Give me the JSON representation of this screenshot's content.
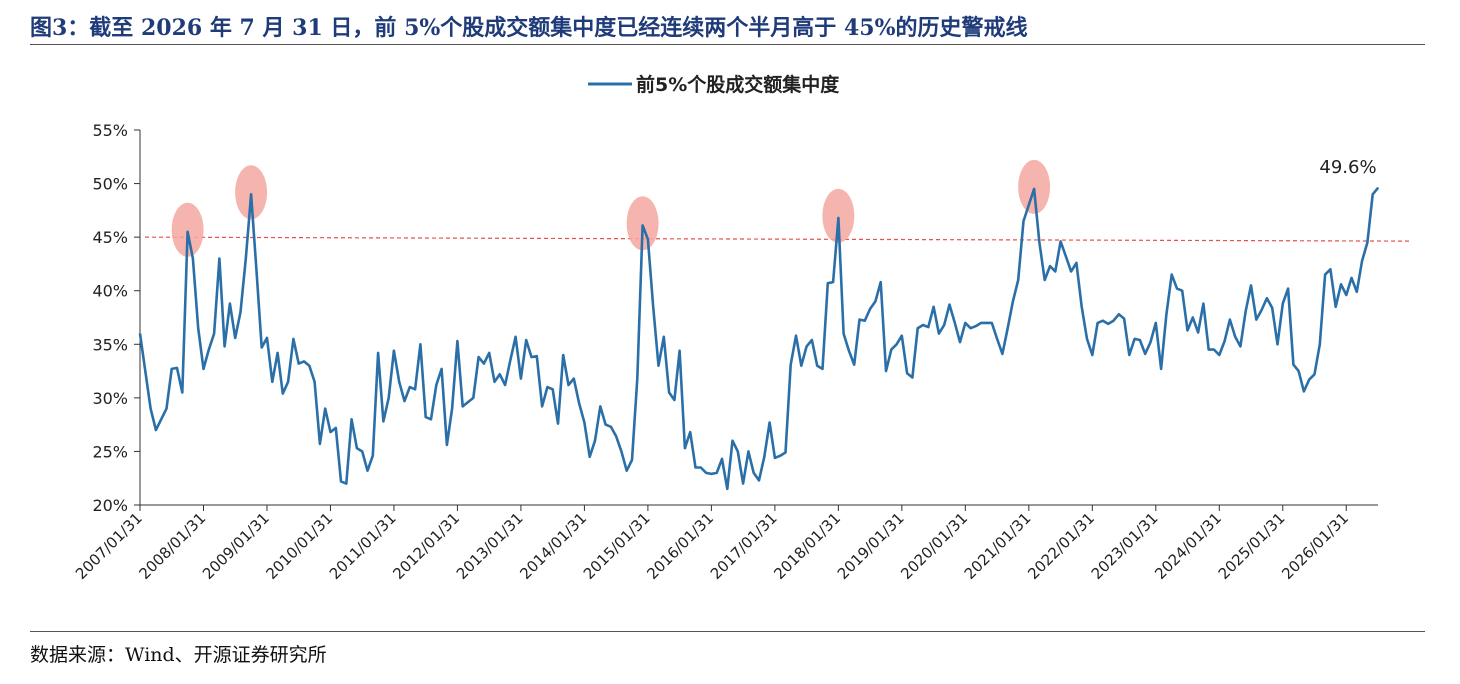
{
  "figure": {
    "title": "图3：截至 2026 年 7 月 31 日，前 5%个股成交额集中度已经连续两个半月高于 45%的历史警戒线",
    "source": "数据来源：Wind、开源证券研究所"
  },
  "colors": {
    "line": "#2a6fa8",
    "title": "#1f3b7a",
    "threshold": "#e8504a",
    "highlight": "#f4a7a0"
  },
  "chart_data": {
    "type": "line",
    "x_label_format": "YYYY/MM/DD",
    "xticks": [
      "2007/01/31",
      "2008/01/31",
      "2009/01/31",
      "2010/01/31",
      "2011/01/31",
      "2012/01/31",
      "2013/01/31",
      "2014/01/31",
      "2015/01/31",
      "2016/01/31",
      "2017/01/31",
      "2018/01/31",
      "2019/01/31",
      "2020/01/31",
      "2021/01/31",
      "2022/01/31",
      "2023/01/31",
      "2024/01/31",
      "2025/01/31",
      "2026/01/31"
    ],
    "yticks": [
      "20%",
      "25%",
      "30%",
      "35%",
      "40%",
      "45%",
      "50%",
      "55%"
    ],
    "ylim": [
      20,
      55
    ],
    "xlim": [
      "2007/01/31",
      "2026/07/31"
    ],
    "legend": {
      "position": "top",
      "label": "前5%个股成交额集中度"
    },
    "threshold": {
      "value": 45,
      "style": "dashed"
    },
    "annotation": {
      "text": "49.6%",
      "x": "2026/07/31",
      "y": 49.6
    },
    "highlights": [
      {
        "x": "2007/10/31",
        "y": 45.5
      },
      {
        "x": "2008/10/31",
        "y": 49.0
      },
      {
        "x": "2014/12/31",
        "y": 46.1
      },
      {
        "x": "2018/01/31",
        "y": 46.8
      },
      {
        "x": "2021/02/28",
        "y": 49.5
      }
    ],
    "series": [
      {
        "name": "前5%个股成交额集中度",
        "points": [
          [
            "2007/01/31",
            36.0
          ],
          [
            "2007/02/28",
            32.5
          ],
          [
            "2007/03/31",
            29.0
          ],
          [
            "2007/04/30",
            27.0
          ],
          [
            "2007/05/31",
            28.0
          ],
          [
            "2007/06/30",
            29.0
          ],
          [
            "2007/07/31",
            32.7
          ],
          [
            "2007/08/31",
            32.8
          ],
          [
            "2007/09/30",
            30.5
          ],
          [
            "2007/10/31",
            45.5
          ],
          [
            "2007/11/30",
            43.0
          ],
          [
            "2007/12/31",
            36.5
          ],
          [
            "2008/01/31",
            32.7
          ],
          [
            "2008/02/29",
            34.5
          ],
          [
            "2008/03/31",
            36.0
          ],
          [
            "2008/04/30",
            43.0
          ],
          [
            "2008/05/31",
            34.8
          ],
          [
            "2008/06/30",
            38.8
          ],
          [
            "2008/07/31",
            35.6
          ],
          [
            "2008/08/31",
            38.0
          ],
          [
            "2008/09/30",
            43.0
          ],
          [
            "2008/10/31",
            49.0
          ],
          [
            "2008/11/30",
            42.0
          ],
          [
            "2008/12/31",
            34.7
          ],
          [
            "2009/01/31",
            35.6
          ],
          [
            "2009/02/28",
            31.5
          ],
          [
            "2009/03/31",
            34.2
          ],
          [
            "2009/04/30",
            30.4
          ],
          [
            "2009/05/31",
            31.5
          ],
          [
            "2009/06/30",
            35.5
          ],
          [
            "2009/07/31",
            33.2
          ],
          [
            "2009/08/31",
            33.4
          ],
          [
            "2009/09/30",
            33.0
          ],
          [
            "2009/10/31",
            31.5
          ],
          [
            "2009/11/30",
            25.7
          ],
          [
            "2009/12/31",
            29.0
          ],
          [
            "2010/01/31",
            26.8
          ],
          [
            "2010/02/28",
            27.2
          ],
          [
            "2010/03/31",
            22.2
          ],
          [
            "2010/04/30",
            22.0
          ],
          [
            "2010/05/31",
            28.0
          ],
          [
            "2010/06/30",
            25.3
          ],
          [
            "2010/07/31",
            25.0
          ],
          [
            "2010/08/31",
            23.2
          ],
          [
            "2010/09/30",
            24.6
          ],
          [
            "2010/10/31",
            34.2
          ],
          [
            "2010/11/30",
            27.8
          ],
          [
            "2010/12/31",
            30.0
          ],
          [
            "2011/01/31",
            34.4
          ],
          [
            "2011/02/28",
            31.5
          ],
          [
            "2011/03/31",
            29.7
          ],
          [
            "2011/04/30",
            31.0
          ],
          [
            "2011/05/31",
            30.8
          ],
          [
            "2011/06/30",
            35.0
          ],
          [
            "2011/07/31",
            28.2
          ],
          [
            "2011/08/31",
            28.0
          ],
          [
            "2011/09/30",
            31.2
          ],
          [
            "2011/10/31",
            32.7
          ],
          [
            "2011/11/30",
            25.6
          ],
          [
            "2011/12/31",
            29.0
          ],
          [
            "2012/01/31",
            35.3
          ],
          [
            "2012/02/29",
            29.2
          ],
          [
            "2012/03/31",
            29.6
          ],
          [
            "2012/04/30",
            30.0
          ],
          [
            "2012/05/31",
            33.8
          ],
          [
            "2012/06/30",
            33.2
          ],
          [
            "2012/07/31",
            34.2
          ],
          [
            "2012/08/31",
            31.5
          ],
          [
            "2012/09/30",
            32.2
          ],
          [
            "2012/10/31",
            31.2
          ],
          [
            "2012/11/30",
            33.5
          ],
          [
            "2012/12/31",
            35.7
          ],
          [
            "2013/01/31",
            31.8
          ],
          [
            "2013/02/28",
            35.4
          ],
          [
            "2013/03/31",
            33.8
          ],
          [
            "2013/04/30",
            33.9
          ],
          [
            "2013/05/31",
            29.2
          ],
          [
            "2013/06/30",
            31.0
          ],
          [
            "2013/07/31",
            30.8
          ],
          [
            "2013/08/31",
            27.6
          ],
          [
            "2013/09/30",
            34.0
          ],
          [
            "2013/10/31",
            31.2
          ],
          [
            "2013/11/30",
            31.8
          ],
          [
            "2013/12/31",
            29.5
          ],
          [
            "2014/01/31",
            27.7
          ],
          [
            "2014/02/28",
            24.5
          ],
          [
            "2014/03/31",
            26.0
          ],
          [
            "2014/04/30",
            29.2
          ],
          [
            "2014/05/31",
            27.5
          ],
          [
            "2014/06/30",
            27.3
          ],
          [
            "2014/07/31",
            26.4
          ],
          [
            "2014/08/31",
            25.0
          ],
          [
            "2014/09/30",
            23.2
          ],
          [
            "2014/10/31",
            24.2
          ],
          [
            "2014/11/30",
            31.8
          ],
          [
            "2014/12/31",
            46.1
          ],
          [
            "2015/01/31",
            44.8
          ],
          [
            "2015/02/28",
            38.5
          ],
          [
            "2015/03/31",
            33.0
          ],
          [
            "2015/04/30",
            35.7
          ],
          [
            "2015/05/31",
            30.5
          ],
          [
            "2015/06/30",
            29.8
          ],
          [
            "2015/07/31",
            34.4
          ],
          [
            "2015/08/31",
            25.3
          ],
          [
            "2015/09/30",
            26.8
          ],
          [
            "2015/10/31",
            23.5
          ],
          [
            "2015/11/30",
            23.5
          ],
          [
            "2015/12/31",
            23.0
          ],
          [
            "2016/01/31",
            22.9
          ],
          [
            "2016/02/29",
            23.0
          ],
          [
            "2016/03/31",
            24.3
          ],
          [
            "2016/04/30",
            21.5
          ],
          [
            "2016/05/31",
            26.0
          ],
          [
            "2016/06/30",
            25.0
          ],
          [
            "2016/07/31",
            22.0
          ],
          [
            "2016/08/31",
            25.0
          ],
          [
            "2016/09/30",
            23.0
          ],
          [
            "2016/10/31",
            22.3
          ],
          [
            "2016/11/30",
            24.5
          ],
          [
            "2016/12/31",
            27.7
          ],
          [
            "2017/01/31",
            24.4
          ],
          [
            "2017/02/28",
            24.6
          ],
          [
            "2017/03/31",
            24.9
          ],
          [
            "2017/04/30",
            33.1
          ],
          [
            "2017/05/31",
            35.8
          ],
          [
            "2017/06/30",
            33.0
          ],
          [
            "2017/07/31",
            34.8
          ],
          [
            "2017/08/31",
            35.4
          ],
          [
            "2017/09/30",
            33.0
          ],
          [
            "2017/10/31",
            32.7
          ],
          [
            "2017/11/30",
            40.7
          ],
          [
            "2017/12/31",
            40.8
          ],
          [
            "2018/01/31",
            46.8
          ],
          [
            "2018/02/28",
            36.0
          ],
          [
            "2018/03/31",
            34.4
          ],
          [
            "2018/04/30",
            33.1
          ],
          [
            "2018/05/31",
            37.3
          ],
          [
            "2018/06/30",
            37.2
          ],
          [
            "2018/07/31",
            38.3
          ],
          [
            "2018/08/31",
            39.0
          ],
          [
            "2018/09/30",
            40.8
          ],
          [
            "2018/10/31",
            32.5
          ],
          [
            "2018/11/30",
            34.5
          ],
          [
            "2018/12/31",
            35.0
          ],
          [
            "2019/01/31",
            35.8
          ],
          [
            "2019/02/28",
            32.3
          ],
          [
            "2019/03/31",
            31.9
          ],
          [
            "2019/04/30",
            36.5
          ],
          [
            "2019/05/31",
            36.8
          ],
          [
            "2019/06/30",
            36.6
          ],
          [
            "2019/07/31",
            38.5
          ],
          [
            "2019/08/31",
            36.0
          ],
          [
            "2019/09/30",
            36.8
          ],
          [
            "2019/10/31",
            38.7
          ],
          [
            "2019/11/30",
            37.0
          ],
          [
            "2019/12/31",
            35.2
          ],
          [
            "2020/01/31",
            37.0
          ],
          [
            "2020/02/29",
            36.5
          ],
          [
            "2020/03/31",
            36.7
          ],
          [
            "2020/04/30",
            37.0
          ],
          [
            "2020/05/31",
            37.0
          ],
          [
            "2020/06/30",
            37.0
          ],
          [
            "2020/07/31",
            35.5
          ],
          [
            "2020/08/31",
            34.1
          ],
          [
            "2020/09/30",
            36.5
          ],
          [
            "2020/10/31",
            39.0
          ],
          [
            "2020/11/30",
            41.0
          ],
          [
            "2020/12/31",
            46.5
          ],
          [
            "2021/01/31",
            48.0
          ],
          [
            "2021/02/28",
            49.5
          ],
          [
            "2021/03/31",
            44.5
          ],
          [
            "2021/04/30",
            41.0
          ],
          [
            "2021/05/31",
            42.3
          ],
          [
            "2021/06/30",
            41.8
          ],
          [
            "2021/07/31",
            44.6
          ],
          [
            "2021/08/31",
            43.2
          ],
          [
            "2021/09/30",
            41.8
          ],
          [
            "2021/10/31",
            42.6
          ],
          [
            "2021/11/30",
            38.5
          ],
          [
            "2021/12/31",
            35.5
          ],
          [
            "2022/01/31",
            34.0
          ],
          [
            "2022/02/28",
            37.0
          ],
          [
            "2022/03/31",
            37.2
          ],
          [
            "2022/04/30",
            36.9
          ],
          [
            "2022/05/31",
            37.2
          ],
          [
            "2022/06/30",
            37.8
          ],
          [
            "2022/07/31",
            37.4
          ],
          [
            "2022/08/31",
            34.0
          ],
          [
            "2022/09/30",
            35.5
          ],
          [
            "2022/10/31",
            35.4
          ],
          [
            "2022/11/30",
            34.1
          ],
          [
            "2022/12/31",
            35.2
          ],
          [
            "2023/01/31",
            37.0
          ],
          [
            "2023/02/28",
            32.7
          ],
          [
            "2023/03/31",
            37.8
          ],
          [
            "2023/04/30",
            41.5
          ],
          [
            "2023/05/31",
            40.2
          ],
          [
            "2023/06/30",
            40.0
          ],
          [
            "2023/07/31",
            36.3
          ],
          [
            "2023/08/31",
            37.5
          ],
          [
            "2023/09/30",
            36.1
          ],
          [
            "2023/10/31",
            38.8
          ],
          [
            "2023/11/30",
            34.5
          ],
          [
            "2023/12/31",
            34.5
          ],
          [
            "2024/01/31",
            34.0
          ],
          [
            "2024/02/29",
            35.3
          ],
          [
            "2024/03/31",
            37.3
          ],
          [
            "2024/04/30",
            35.7
          ],
          [
            "2024/05/31",
            34.8
          ],
          [
            "2024/06/30",
            38.1
          ],
          [
            "2024/07/31",
            40.5
          ],
          [
            "2024/08/31",
            37.3
          ],
          [
            "2024/09/30",
            38.2
          ],
          [
            "2024/10/31",
            39.3
          ],
          [
            "2024/11/30",
            38.4
          ],
          [
            "2024/12/31",
            35.0
          ],
          [
            "2025/01/31",
            38.8
          ],
          [
            "2025/02/28",
            40.2
          ],
          [
            "2025/03/31",
            33.1
          ],
          [
            "2025/04/30",
            32.5
          ],
          [
            "2025/05/31",
            30.6
          ],
          [
            "2025/06/30",
            31.7
          ],
          [
            "2025/07/31",
            32.2
          ],
          [
            "2025/08/31",
            35.0
          ],
          [
            "2025/09/30",
            41.5
          ],
          [
            "2025/10/31",
            42.0
          ],
          [
            "2025/11/30",
            38.5
          ],
          [
            "2025/12/31",
            40.6
          ],
          [
            "2026/01/31",
            39.6
          ],
          [
            "2026/02/28",
            41.2
          ],
          [
            "2026/03/31",
            39.9
          ],
          [
            "2026/04/30",
            42.8
          ],
          [
            "2026/05/31",
            44.5
          ],
          [
            "2026/06/30",
            49.0
          ],
          [
            "2026/07/31",
            49.6
          ]
        ]
      }
    ]
  }
}
